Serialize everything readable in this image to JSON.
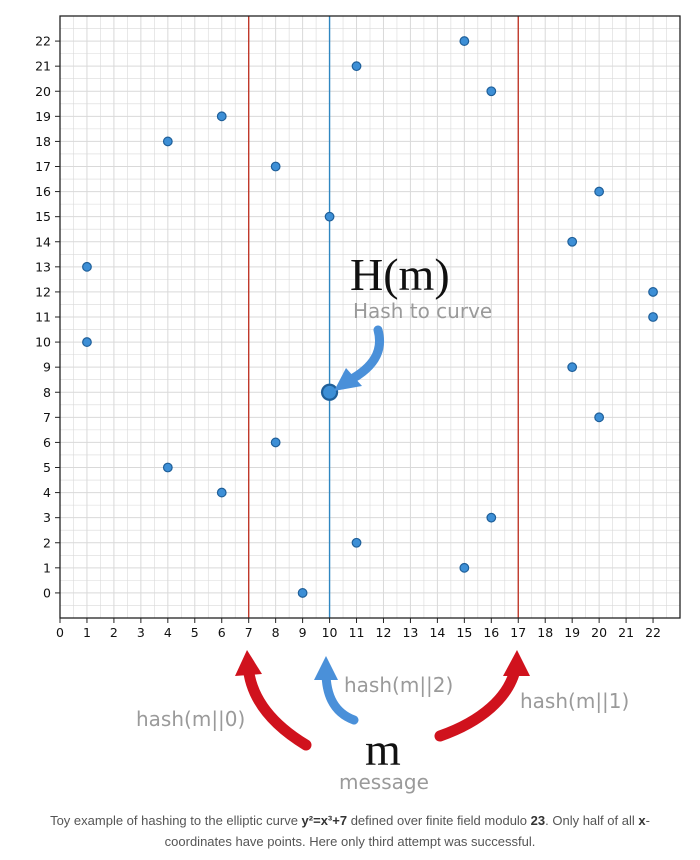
{
  "chart_data": {
    "type": "scatter",
    "xlim": [
      0,
      23
    ],
    "ylim": [
      -1,
      23
    ],
    "x_ticks": [
      0,
      1,
      2,
      3,
      4,
      5,
      6,
      7,
      8,
      9,
      10,
      11,
      12,
      13,
      14,
      15,
      16,
      17,
      18,
      19,
      20,
      21,
      22
    ],
    "y_ticks": [
      0,
      1,
      2,
      3,
      4,
      5,
      6,
      7,
      8,
      9,
      10,
      11,
      12,
      13,
      14,
      15,
      16,
      17,
      18,
      19,
      20,
      21,
      22
    ],
    "grid": true,
    "points": [
      {
        "x": 1,
        "y": 10
      },
      {
        "x": 1,
        "y": 13
      },
      {
        "x": 4,
        "y": 5
      },
      {
        "x": 4,
        "y": 18
      },
      {
        "x": 6,
        "y": 4
      },
      {
        "x": 6,
        "y": 19
      },
      {
        "x": 8,
        "y": 6
      },
      {
        "x": 8,
        "y": 17
      },
      {
        "x": 9,
        "y": 0
      },
      {
        "x": 10,
        "y": 8
      },
      {
        "x": 10,
        "y": 15
      },
      {
        "x": 11,
        "y": 2
      },
      {
        "x": 11,
        "y": 21
      },
      {
        "x": 15,
        "y": 1
      },
      {
        "x": 15,
        "y": 22
      },
      {
        "x": 16,
        "y": 3
      },
      {
        "x": 16,
        "y": 20
      },
      {
        "x": 19,
        "y": 9
      },
      {
        "x": 19,
        "y": 14
      },
      {
        "x": 20,
        "y": 7
      },
      {
        "x": 20,
        "y": 16
      },
      {
        "x": 22,
        "y": 11
      },
      {
        "x": 22,
        "y": 12
      }
    ],
    "highlight_point": {
      "x": 10,
      "y": 8
    },
    "vertical_lines": [
      {
        "x": 7,
        "color": "#c0392b"
      },
      {
        "x": 10,
        "color": "#2e86c1"
      },
      {
        "x": 17,
        "color": "#c0392b"
      }
    ],
    "annotations": {
      "hash_label": "H(m)",
      "hash_to_curve": "Hash to curve",
      "attempt0": "hash(m||0)",
      "attempt1": "hash(m||1)",
      "attempt2": "hash(m||2)",
      "m": "m",
      "message": "message"
    },
    "colors": {
      "point": "#3d8fd6",
      "point_edge": "#1f5f99",
      "red": "#d0121d",
      "blue_arrow": "#4a90d9",
      "grid": "#d9d9d9"
    }
  },
  "caption": {
    "part1": "Toy example of hashing to the elliptic curve ",
    "equation": "y²=x³+7",
    "part2": " defined over finite field modulo ",
    "modulus": "23",
    "part3": ". Only half of all ",
    "x_word": "x",
    "part4": "-coordinates have points. Here only third attempt was successful."
  }
}
